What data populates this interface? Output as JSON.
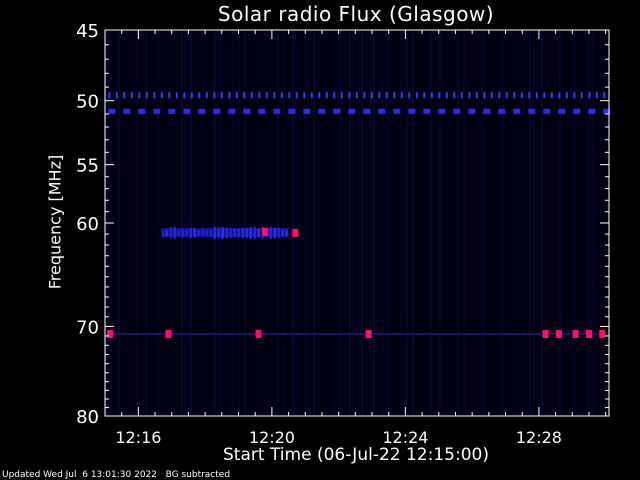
{
  "chart_data": {
    "type": "heatmap",
    "title": "Solar radio Flux (Glasgow)",
    "xlabel": "Start Time (06-Jul-22 12:15:00)",
    "ylabel": "Frequency [MHz]",
    "x_ticks": [
      "12:16",
      "12:20",
      "12:24",
      "12:28"
    ],
    "x_tick_minutes": [
      16,
      20,
      24,
      28
    ],
    "xlim_minutes": [
      15.0,
      30.1
    ],
    "y_ticks": [
      45,
      50,
      55,
      60,
      70,
      80
    ],
    "ylim": [
      45,
      80
    ],
    "y_scale": "log",
    "colormap": [
      "#000010",
      "#1818b0",
      "#3030ff",
      "#ff1060"
    ],
    "features": [
      {
        "name": "band",
        "freq": 49.6,
        "t0": 15.1,
        "t1": 30.0,
        "style": "ticks",
        "color": "#3a3aff"
      },
      {
        "name": "band",
        "freq": 50.8,
        "t0": 15.1,
        "t1": 30.0,
        "style": "dashes",
        "color": "#2828ff"
      },
      {
        "name": "burst",
        "freq": 60.9,
        "t0": 16.7,
        "t1": 20.5,
        "color": "#2020ff"
      },
      {
        "name": "band",
        "freq": 70.8,
        "t0": 15.1,
        "t1": 30.0,
        "style": "spots",
        "color": "#ff1060"
      }
    ],
    "hot_spots": [
      {
        "t": 19.8,
        "freq": 60.8
      },
      {
        "t": 20.7,
        "freq": 60.9
      },
      {
        "t": 15.15,
        "freq": 70.8
      },
      {
        "t": 16.9,
        "freq": 70.8
      },
      {
        "t": 19.6,
        "freq": 70.8
      },
      {
        "t": 22.9,
        "freq": 70.8
      },
      {
        "t": 28.2,
        "freq": 70.8
      },
      {
        "t": 28.6,
        "freq": 70.8
      },
      {
        "t": 29.1,
        "freq": 70.8
      },
      {
        "t": 29.5,
        "freq": 70.8
      },
      {
        "t": 29.9,
        "freq": 70.8
      }
    ]
  },
  "footer": {
    "updated": "Updated Wed Jul  6 13:01:30 2022",
    "note": "BG subtracted"
  }
}
